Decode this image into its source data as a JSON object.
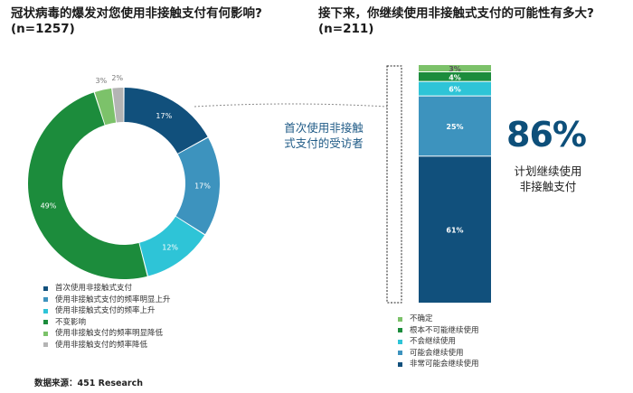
{
  "left": {
    "title_line1": "冠状病毒的爆发对您使用非接触支付有何影响?",
    "title_line2": "(n=1257)"
  },
  "right": {
    "title_line1": "接下来，你继续使用非接触式支付的可能性有多大?",
    "title_line2": "(n=211)"
  },
  "callout": {
    "line1": "首次使用非接触",
    "line2": "式支付的受访者"
  },
  "highlight": {
    "value": "86%",
    "caption_line1": "计划继续使用",
    "caption_line2": "非接触支付"
  },
  "source": "数据来源：451 Research",
  "chart_data": [
    {
      "type": "pie",
      "subtype": "donut",
      "title": "冠状病毒的爆发对您使用非接触支付有何影响?",
      "subtitle": "(n=1257)",
      "legend_position": "bottom-left",
      "slices": [
        {
          "name": "首次使用非接触式支付",
          "value": 17,
          "label": "17%",
          "color": "#11507c"
        },
        {
          "name": "使用非接触式支付的频率明显上升",
          "value": 17,
          "label": "17%",
          "color": "#3d93be"
        },
        {
          "name": "使用非接触式支付的频率上升",
          "value": 12,
          "label": "12%",
          "color": "#2ec4d7"
        },
        {
          "name": "不变影响",
          "value": 49,
          "label": "49%",
          "color": "#1c8c3c"
        },
        {
          "name": "使用非接触支付的频率明显降低",
          "value": 3,
          "label": "3%",
          "color": "#7cc26a"
        },
        {
          "name": "使用非接触支付的频率降低",
          "value": 2,
          "label": "2%",
          "color": "#b4b4b4"
        }
      ]
    },
    {
      "type": "bar",
      "subtype": "stacked-100",
      "title": "接下来，你继续使用非接触式支付的可能性有多大?",
      "subtitle": "(n=211)",
      "legend_position": "bottom",
      "segments": [
        {
          "name": "非常可能会继续使用",
          "value": 61,
          "label": "61%",
          "color": "#11507c"
        },
        {
          "name": "可能会继续使用",
          "value": 25,
          "label": "25%",
          "color": "#3d93be"
        },
        {
          "name": "不会继续使用",
          "value": 6,
          "label": "6%",
          "color": "#2ec4d7"
        },
        {
          "name": "根本不可能继续使用",
          "value": 4,
          "label": "4%",
          "color": "#1c8c3c"
        },
        {
          "name": "不确定",
          "value": 3,
          "label": "3%",
          "color": "#7cc26a"
        }
      ],
      "legend_order": [
        "不确定",
        "根本不可能继续使用",
        "不会继续使用",
        "可能会继续使用",
        "非常可能会继续使用"
      ]
    }
  ]
}
